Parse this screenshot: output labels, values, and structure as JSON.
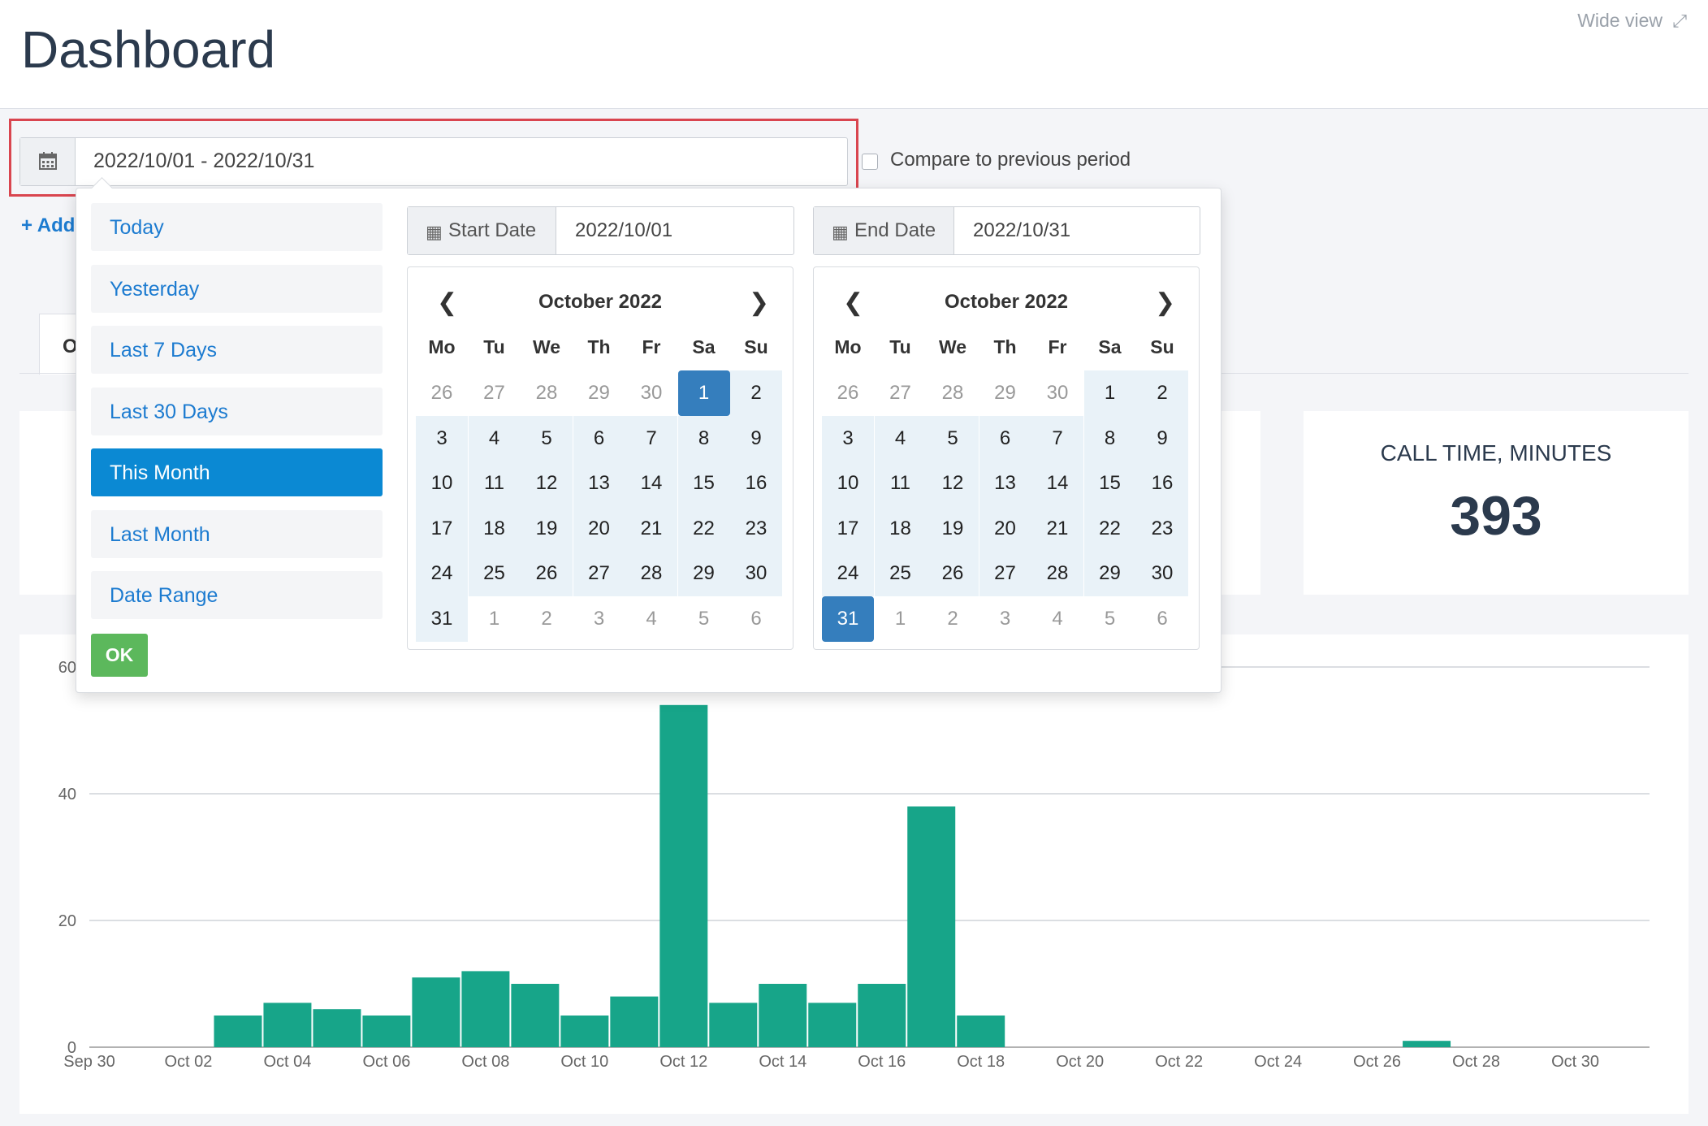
{
  "header": {
    "title": "Dashboard",
    "wide_view": "Wide view"
  },
  "date_filter": {
    "value": "2022/10/01 - 2022/10/31",
    "compare_label": "Compare to previous period"
  },
  "add_link": "+ Add",
  "tab_label": "O",
  "metric": {
    "label": "CALL TIME, MINUTES",
    "value": "393"
  },
  "picker": {
    "ranges": [
      {
        "label": "Today",
        "active": false
      },
      {
        "label": "Yesterday",
        "active": false
      },
      {
        "label": "Last 7 Days",
        "active": false
      },
      {
        "label": "Last 30 Days",
        "active": false
      },
      {
        "label": "This Month",
        "active": true
      },
      {
        "label": "Last Month",
        "active": false
      },
      {
        "label": "Date Range",
        "active": false
      }
    ],
    "ok_label": "OK",
    "start_label": "Start Date",
    "start_value": "2022/10/01",
    "end_label": "End Date",
    "end_value": "2022/10/31",
    "left_month": "October 2022",
    "right_month": "October 2022",
    "weekdays": [
      "Mo",
      "Tu",
      "We",
      "Th",
      "Fr",
      "Sa",
      "Su"
    ],
    "days": [
      "26",
      "27",
      "28",
      "29",
      "30",
      "1",
      "2",
      "3",
      "4",
      "5",
      "6",
      "7",
      "8",
      "9",
      "10",
      "11",
      "12",
      "13",
      "14",
      "15",
      "16",
      "17",
      "18",
      "19",
      "20",
      "21",
      "22",
      "23",
      "24",
      "25",
      "26",
      "27",
      "28",
      "29",
      "30",
      "31",
      "1",
      "2",
      "3",
      "4",
      "5",
      "6"
    ],
    "range_start": "1",
    "range_end": "31"
  },
  "chart_data": {
    "type": "bar",
    "categories": [
      "Sep 30",
      "Oct 01",
      "Oct 02",
      "Oct 03",
      "Oct 04",
      "Oct 05",
      "Oct 06",
      "Oct 07",
      "Oct 08",
      "Oct 09",
      "Oct 10",
      "Oct 11",
      "Oct 12",
      "Oct 13",
      "Oct 14",
      "Oct 15",
      "Oct 16",
      "Oct 17",
      "Oct 18",
      "Oct 19",
      "Oct 20",
      "Oct 21",
      "Oct 22",
      "Oct 23",
      "Oct 24",
      "Oct 25",
      "Oct 26",
      "Oct 27",
      "Oct 28",
      "Oct 29",
      "Oct 30",
      "Oct 31"
    ],
    "values": [
      0,
      0,
      0,
      5,
      7,
      6,
      5,
      11,
      12,
      10,
      5,
      8,
      54,
      7,
      10,
      7,
      10,
      38,
      5,
      0,
      0,
      0,
      0,
      0,
      0,
      0,
      0,
      1,
      0,
      0,
      0,
      0
    ],
    "x_tick_labels": [
      "Sep 30",
      "Oct 02",
      "Oct 04",
      "Oct 06",
      "Oct 08",
      "Oct 10",
      "Oct 12",
      "Oct 14",
      "Oct 16",
      "Oct 18",
      "Oct 20",
      "Oct 22",
      "Oct 24",
      "Oct 26",
      "Oct 28",
      "Oct 30"
    ],
    "y_ticks": [
      "0",
      "20",
      "40",
      "60"
    ],
    "ylim": [
      0,
      60
    ],
    "color": "#17a589",
    "grid": true
  }
}
